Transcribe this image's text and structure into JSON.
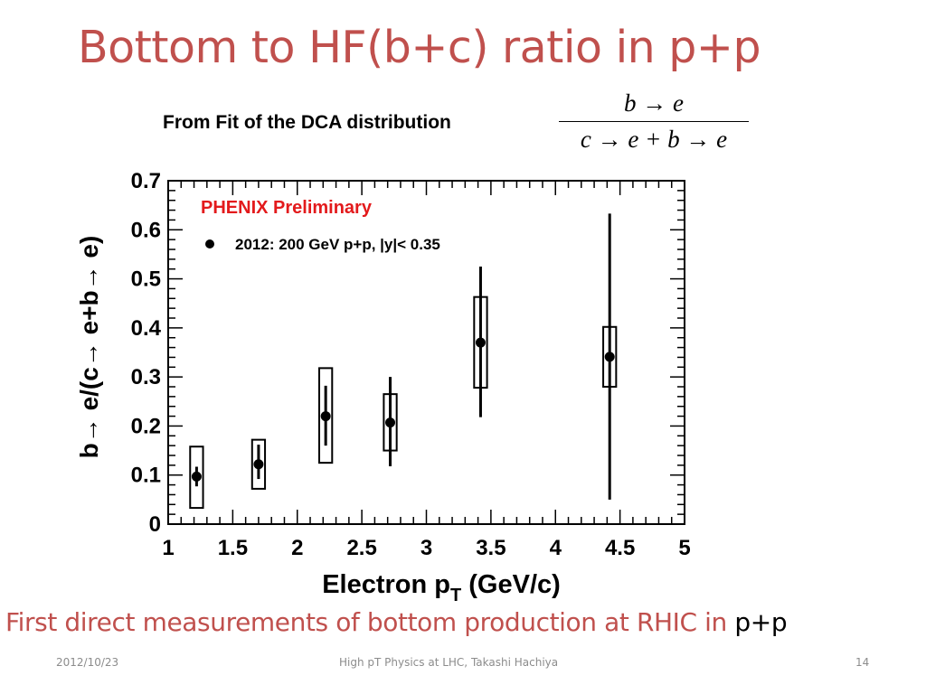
{
  "slide": {
    "title": "Bottom to HF(b+c) ratio in p+p",
    "subtitle": "From Fit of the DCA distribution",
    "formula": {
      "numerator": "b → e",
      "denominator": "c → e + b → e"
    },
    "conclusion_text": "First direct measurements of bottom production at RHIC in",
    "conclusion_tail": "p+p",
    "footer_date": "2012/10/23",
    "footer_center": "High pT Physics at LHC, Takashi Hachiya",
    "footer_page": "14"
  },
  "colors": {
    "title": "#c0504d",
    "preliminary": "#e31a1c",
    "axis": "#000000"
  },
  "chart_data": {
    "type": "scatter",
    "annotation": "PHENIX Preliminary",
    "legend": [
      {
        "label": "2012: 200 GeV p+p, |y|< 0.35",
        "marker": "filled-circle"
      }
    ],
    "legend_placement": "top-left",
    "xlabel": "Electron p",
    "xlabel_sub": "T",
    "xlabel_unit": " (GeV/c)",
    "ylabel": "b→ e/(c→ e+b→ e)",
    "xlim": [
      1,
      5
    ],
    "ylim": [
      0,
      0.7
    ],
    "xticks": [
      "1",
      "1.5",
      "2",
      "2.5",
      "3",
      "3.5",
      "4",
      "4.5",
      "5"
    ],
    "yticks": [
      "0",
      "0.1",
      "0.2",
      "0.3",
      "0.4",
      "0.5",
      "0.6",
      "0.7"
    ],
    "grid": false,
    "points": [
      {
        "x": 1.22,
        "y": 0.097,
        "stat_lo": 0.077,
        "stat_hi": 0.117,
        "sys_lo": 0.033,
        "sys_hi": 0.158,
        "sys_halfwidth": 0.05
      },
      {
        "x": 1.7,
        "y": 0.122,
        "stat_lo": 0.092,
        "stat_hi": 0.162,
        "sys_lo": 0.072,
        "sys_hi": 0.172,
        "sys_halfwidth": 0.05
      },
      {
        "x": 2.22,
        "y": 0.22,
        "stat_lo": 0.16,
        "stat_hi": 0.282,
        "sys_lo": 0.125,
        "sys_hi": 0.318,
        "sys_halfwidth": 0.05
      },
      {
        "x": 2.72,
        "y": 0.207,
        "stat_lo": 0.118,
        "stat_hi": 0.3,
        "sys_lo": 0.15,
        "sys_hi": 0.265,
        "sys_halfwidth": 0.05
      },
      {
        "x": 3.42,
        "y": 0.37,
        "stat_lo": 0.218,
        "stat_hi": 0.525,
        "sys_lo": 0.278,
        "sys_hi": 0.463,
        "sys_halfwidth": 0.05
      },
      {
        "x": 4.42,
        "y": 0.341,
        "stat_lo": 0.05,
        "stat_hi": 0.633,
        "sys_lo": 0.28,
        "sys_hi": 0.402,
        "sys_halfwidth": 0.05
      }
    ]
  }
}
